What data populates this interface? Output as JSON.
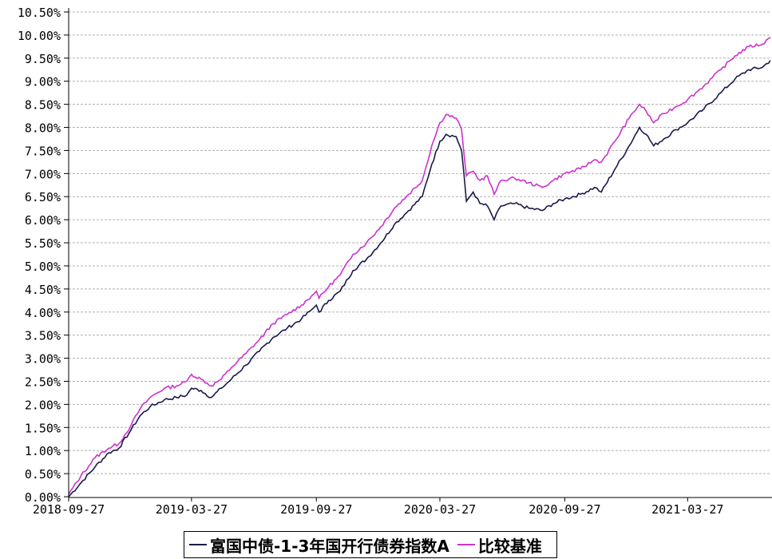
{
  "chart_data": {
    "type": "line",
    "y_ticks": [
      "0.00%",
      "0.50%",
      "1.00%",
      "1.50%",
      "2.00%",
      "2.50%",
      "3.00%",
      "3.50%",
      "4.00%",
      "4.50%",
      "5.00%",
      "5.50%",
      "6.00%",
      "6.50%",
      "7.00%",
      "7.50%",
      "8.00%",
      "8.50%",
      "9.00%",
      "9.50%",
      "10.00%",
      "10.50%"
    ],
    "x_ticks": [
      "2018-09-27",
      "2019-03-27",
      "2019-09-27",
      "2020-03-27",
      "2020-09-27",
      "2021-03-27"
    ],
    "ylim": [
      0,
      10.5
    ],
    "xlim": [
      "2018-09-27",
      "2021-07-27"
    ],
    "grid": true,
    "legend_position": "bottom",
    "series": [
      {
        "name": "富国中债-1-3年国开行债券指数A",
        "color": "#1a1a4a",
        "points": [
          [
            "2018-09-27",
            0.0
          ],
          [
            "2018-10-15",
            0.3
          ],
          [
            "2018-11-05",
            0.65
          ],
          [
            "2018-11-25",
            0.95
          ],
          [
            "2018-12-10",
            1.05
          ],
          [
            "2018-12-28",
            1.45
          ],
          [
            "2019-01-10",
            1.75
          ],
          [
            "2019-01-25",
            1.95
          ],
          [
            "2019-02-15",
            2.1
          ],
          [
            "2019-03-05",
            2.15
          ],
          [
            "2019-03-20",
            2.2
          ],
          [
            "2019-03-27",
            2.35
          ],
          [
            "2019-04-10",
            2.3
          ],
          [
            "2019-04-25",
            2.15
          ],
          [
            "2019-05-10",
            2.35
          ],
          [
            "2019-05-25",
            2.55
          ],
          [
            "2019-06-15",
            2.85
          ],
          [
            "2019-07-05",
            3.15
          ],
          [
            "2019-07-25",
            3.45
          ],
          [
            "2019-08-15",
            3.65
          ],
          [
            "2019-09-05",
            3.85
          ],
          [
            "2019-09-20",
            4.05
          ],
          [
            "2019-09-27",
            4.15
          ],
          [
            "2019-10-01",
            4.0
          ],
          [
            "2019-10-15",
            4.25
          ],
          [
            "2019-11-01",
            4.45
          ],
          [
            "2019-11-20",
            4.9
          ],
          [
            "2019-12-10",
            5.15
          ],
          [
            "2019-12-31",
            5.5
          ],
          [
            "2020-01-20",
            5.9
          ],
          [
            "2020-02-10",
            6.2
          ],
          [
            "2020-03-01",
            6.5
          ],
          [
            "2020-03-15",
            7.2
          ],
          [
            "2020-03-27",
            7.7
          ],
          [
            "2020-04-05",
            7.85
          ],
          [
            "2020-04-20",
            7.8
          ],
          [
            "2020-04-28",
            7.5
          ],
          [
            "2020-05-05",
            6.4
          ],
          [
            "2020-05-15",
            6.6
          ],
          [
            "2020-05-25",
            6.35
          ],
          [
            "2020-06-05",
            6.3
          ],
          [
            "2020-06-15",
            6.0
          ],
          [
            "2020-06-25",
            6.3
          ],
          [
            "2020-07-15",
            6.35
          ],
          [
            "2020-08-05",
            6.25
          ],
          [
            "2020-08-25",
            6.2
          ],
          [
            "2020-09-10",
            6.35
          ],
          [
            "2020-09-27",
            6.45
          ],
          [
            "2020-10-20",
            6.55
          ],
          [
            "2020-11-10",
            6.7
          ],
          [
            "2020-11-20",
            6.6
          ],
          [
            "2020-12-10",
            7.1
          ],
          [
            "2020-12-31",
            7.6
          ],
          [
            "2021-01-15",
            8.0
          ],
          [
            "2021-01-25",
            7.85
          ],
          [
            "2021-02-05",
            7.6
          ],
          [
            "2021-02-20",
            7.75
          ],
          [
            "2021-03-10",
            7.95
          ],
          [
            "2021-03-27",
            8.1
          ],
          [
            "2021-04-20",
            8.4
          ],
          [
            "2021-05-15",
            8.75
          ],
          [
            "2021-06-05",
            9.05
          ],
          [
            "2021-06-25",
            9.25
          ],
          [
            "2021-07-15",
            9.3
          ],
          [
            "2021-07-27",
            9.45
          ]
        ]
      },
      {
        "name": "比较基准",
        "color": "#cc33cc",
        "points": [
          [
            "2018-09-27",
            0.05
          ],
          [
            "2018-10-15",
            0.45
          ],
          [
            "2018-11-05",
            0.85
          ],
          [
            "2018-11-25",
            1.05
          ],
          [
            "2018-12-10",
            1.15
          ],
          [
            "2018-12-28",
            1.55
          ],
          [
            "2019-01-10",
            1.9
          ],
          [
            "2019-01-25",
            2.15
          ],
          [
            "2019-02-15",
            2.35
          ],
          [
            "2019-03-05",
            2.4
          ],
          [
            "2019-03-20",
            2.5
          ],
          [
            "2019-03-27",
            2.65
          ],
          [
            "2019-04-10",
            2.55
          ],
          [
            "2019-04-25",
            2.4
          ],
          [
            "2019-05-10",
            2.55
          ],
          [
            "2019-05-25",
            2.8
          ],
          [
            "2019-06-15",
            3.1
          ],
          [
            "2019-07-05",
            3.4
          ],
          [
            "2019-07-25",
            3.75
          ],
          [
            "2019-08-15",
            3.95
          ],
          [
            "2019-09-05",
            4.15
          ],
          [
            "2019-09-20",
            4.35
          ],
          [
            "2019-09-27",
            4.45
          ],
          [
            "2019-10-01",
            4.3
          ],
          [
            "2019-10-15",
            4.55
          ],
          [
            "2019-11-01",
            4.8
          ],
          [
            "2019-11-20",
            5.25
          ],
          [
            "2019-12-10",
            5.5
          ],
          [
            "2019-12-31",
            5.85
          ],
          [
            "2020-01-20",
            6.25
          ],
          [
            "2020-02-10",
            6.55
          ],
          [
            "2020-03-01",
            6.85
          ],
          [
            "2020-03-15",
            7.6
          ],
          [
            "2020-03-27",
            8.1
          ],
          [
            "2020-04-05",
            8.28
          ],
          [
            "2020-04-20",
            8.2
          ],
          [
            "2020-04-28",
            7.95
          ],
          [
            "2020-05-05",
            6.95
          ],
          [
            "2020-05-15",
            7.05
          ],
          [
            "2020-05-25",
            6.85
          ],
          [
            "2020-06-05",
            6.95
          ],
          [
            "2020-06-15",
            6.55
          ],
          [
            "2020-06-25",
            6.85
          ],
          [
            "2020-07-15",
            6.9
          ],
          [
            "2020-08-05",
            6.8
          ],
          [
            "2020-08-25",
            6.7
          ],
          [
            "2020-09-10",
            6.85
          ],
          [
            "2020-09-27",
            7.0
          ],
          [
            "2020-10-20",
            7.1
          ],
          [
            "2020-11-10",
            7.3
          ],
          [
            "2020-11-20",
            7.25
          ],
          [
            "2020-12-10",
            7.7
          ],
          [
            "2020-12-31",
            8.2
          ],
          [
            "2021-01-15",
            8.5
          ],
          [
            "2021-01-25",
            8.35
          ],
          [
            "2021-02-05",
            8.1
          ],
          [
            "2021-02-20",
            8.3
          ],
          [
            "2021-03-10",
            8.45
          ],
          [
            "2021-03-27",
            8.6
          ],
          [
            "2021-04-20",
            8.9
          ],
          [
            "2021-05-15",
            9.25
          ],
          [
            "2021-06-05",
            9.55
          ],
          [
            "2021-06-25",
            9.75
          ],
          [
            "2021-07-15",
            9.8
          ],
          [
            "2021-07-27",
            9.95
          ]
        ]
      }
    ]
  }
}
